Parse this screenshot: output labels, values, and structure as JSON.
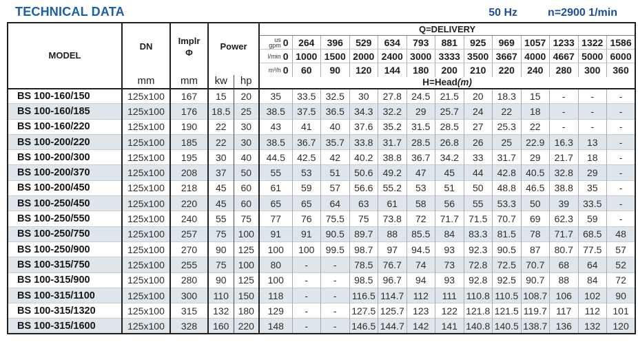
{
  "page": {
    "title": "TECHNICAL DATA",
    "frequency": "50 Hz",
    "speed": "n=2900 1/min"
  },
  "table": {
    "model_label": "MODEL",
    "dn_label": "DN",
    "dn_unit": "mm",
    "implr_label": "Implr",
    "implr_symbol": "Φ",
    "implr_unit": "mm",
    "power_label": "Power",
    "power_units": [
      "kw",
      "hp"
    ],
    "delivery_title": "Q=DELIVERY",
    "head_label": "H=Head",
    "head_unit": "(m)",
    "flow_rows": [
      {
        "name": "us-gpm",
        "label_lines": [
          "us",
          "gpm"
        ],
        "values": [
          "0",
          "264",
          "396",
          "529",
          "634",
          "793",
          "881",
          "925",
          "969",
          "1057",
          "1233",
          "1322",
          "1586"
        ]
      },
      {
        "name": "l-min",
        "label_lines": [
          "l/min"
        ],
        "values": [
          "0",
          "1000",
          "1500",
          "2000",
          "2400",
          "3000",
          "3333",
          "3500",
          "3667",
          "4000",
          "4667",
          "5000",
          "6000"
        ]
      },
      {
        "name": "m3-h",
        "label_lines": [
          "m³/h"
        ],
        "values": [
          "0",
          "60",
          "90",
          "120",
          "144",
          "180",
          "200",
          "210",
          "220",
          "240",
          "280",
          "300",
          "360"
        ]
      }
    ],
    "rows": [
      {
        "model": "BS 100-160/150",
        "dn": "125x100",
        "impeller": "167",
        "kw": "15",
        "hp": "20",
        "head": [
          "35",
          "33.5",
          "32.5",
          "30",
          "27.8",
          "24.5",
          "21.5",
          "20",
          "18.3",
          "15",
          "-",
          "-",
          "-"
        ]
      },
      {
        "model": "BS 100-160/185",
        "dn": "125x100",
        "impeller": "176",
        "kw": "18.5",
        "hp": "25",
        "head": [
          "38.5",
          "37.5",
          "36.5",
          "34.3",
          "32.2",
          "29",
          "25.7",
          "24",
          "22",
          "18",
          "-",
          "-",
          "-"
        ]
      },
      {
        "model": "BS 100-160/220",
        "dn": "125x100",
        "impeller": "190",
        "kw": "22",
        "hp": "30",
        "head": [
          "43",
          "41",
          "40",
          "37.6",
          "35.2",
          "31.5",
          "28.5",
          "27",
          "25.3",
          "22",
          "-",
          "-",
          "-"
        ]
      },
      {
        "model": "BS 100-200/220",
        "dn": "125x100",
        "impeller": "185",
        "kw": "22",
        "hp": "30",
        "head": [
          "38.5",
          "36.7",
          "35.7",
          "33.8",
          "31.7",
          "28.5",
          "26.8",
          "26",
          "25",
          "22.9",
          "16.3",
          "13",
          "-"
        ]
      },
      {
        "model": "BS 100-200/300",
        "dn": "125x100",
        "impeller": "195",
        "kw": "30",
        "hp": "40",
        "head": [
          "44.5",
          "42.5",
          "42",
          "40.2",
          "38.8",
          "36.7",
          "34.2",
          "33",
          "31.7",
          "29",
          "21.7",
          "18",
          "-"
        ]
      },
      {
        "model": "BS 100-200/370",
        "dn": "125x100",
        "impeller": "208",
        "kw": "37",
        "hp": "50",
        "head": [
          "55",
          "53",
          "51",
          "50.6",
          "49.2",
          "47",
          "45",
          "44",
          "42.8",
          "40.5",
          "32.8",
          "29",
          "-"
        ]
      },
      {
        "model": "BS 100-200/450",
        "dn": "125x100",
        "impeller": "218",
        "kw": "45",
        "hp": "60",
        "head": [
          "61",
          "59",
          "57",
          "56.6",
          "55.2",
          "53",
          "51",
          "50",
          "48.8",
          "46.5",
          "38.8",
          "35",
          "-"
        ]
      },
      {
        "model": "BS 100-250/450",
        "dn": "125x100",
        "impeller": "220",
        "kw": "45",
        "hp": "60",
        "head": [
          "65",
          "65",
          "64",
          "63",
          "61",
          "58",
          "56",
          "55",
          "53.3",
          "50",
          "39",
          "33.5",
          "-"
        ]
      },
      {
        "model": "BS 100-250/550",
        "dn": "125x100",
        "impeller": "240",
        "kw": "55",
        "hp": "75",
        "head": [
          "77",
          "76",
          "75.5",
          "75",
          "73.8",
          "72",
          "71.7",
          "71.5",
          "70.7",
          "69",
          "62.3",
          "59",
          "-"
        ]
      },
      {
        "model": "BS 100-250/750",
        "dn": "125x100",
        "impeller": "257",
        "kw": "75",
        "hp": "100",
        "head": [
          "91",
          "91",
          "90.5",
          "89.7",
          "88",
          "85.5",
          "84",
          "83.3",
          "81.5",
          "78",
          "71.7",
          "68.5",
          "48"
        ]
      },
      {
        "model": "BS 100-250/900",
        "dn": "125x100",
        "impeller": "270",
        "kw": "90",
        "hp": "125",
        "head": [
          "100",
          "100",
          "99.5",
          "98.7",
          "97",
          "94.5",
          "93",
          "92.3",
          "90.5",
          "87",
          "80.7",
          "77.5",
          "57"
        ]
      },
      {
        "model": "BS 100-315/750",
        "dn": "125x100",
        "impeller": "255",
        "kw": "75",
        "hp": "100",
        "head": [
          "80",
          "-",
          "-",
          "78.5",
          "76.7",
          "74",
          "73",
          "72.8",
          "72.5",
          "70.7",
          "68",
          "64",
          "52"
        ]
      },
      {
        "model": "BS 100-315/900",
        "dn": "125x100",
        "impeller": "280",
        "kw": "90",
        "hp": "125",
        "head": [
          "100",
          "-",
          "-",
          "98.5",
          "96.7",
          "94",
          "93",
          "92.8",
          "92.5",
          "90.7",
          "88",
          "84",
          "72"
        ]
      },
      {
        "model": "BS 100-315/1100",
        "dn": "125x100",
        "impeller": "300",
        "kw": "110",
        "hp": "150",
        "head": [
          "118",
          "-",
          "-",
          "116.5",
          "114.7",
          "112",
          "111",
          "110.8",
          "110.5",
          "108.7",
          "106",
          "102",
          "90"
        ]
      },
      {
        "model": "BS 100-315/1320",
        "dn": "125x100",
        "impeller": "315",
        "kw": "132",
        "hp": "180",
        "head": [
          "129",
          "-",
          "-",
          "127.5",
          "125.7",
          "123",
          "122",
          "121.8",
          "121.5",
          "119.7",
          "117",
          "112",
          "101"
        ]
      },
      {
        "model": "BS 100-315/1600",
        "dn": "125x100",
        "impeller": "328",
        "kw": "160",
        "hp": "220",
        "head": [
          "148",
          "-",
          "-",
          "146.5",
          "144.7",
          "142",
          "141",
          "140.8",
          "140.5",
          "138.7",
          "136",
          "132",
          "120"
        ]
      }
    ]
  }
}
